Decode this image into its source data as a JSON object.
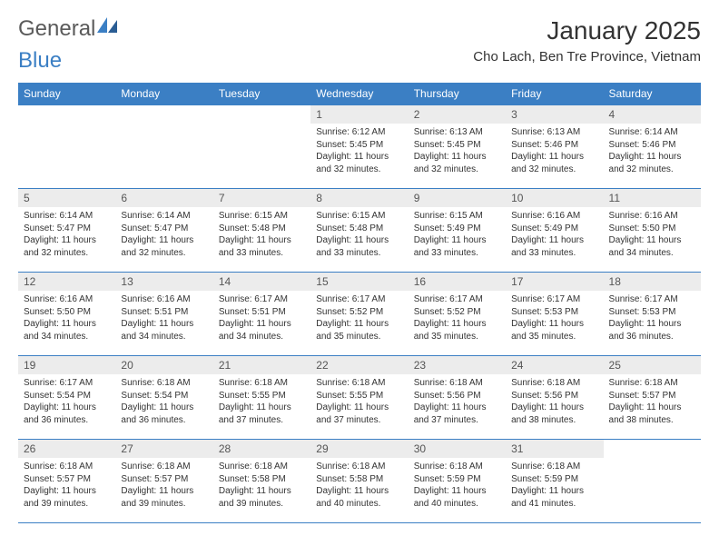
{
  "logo": {
    "part1": "General",
    "part2": "Blue"
  },
  "title": "January 2025",
  "subtitle": "Cho Lach, Ben Tre Province, Vietnam",
  "colors": {
    "header_bg": "#3b7fc4",
    "header_text": "#ffffff",
    "daynum_bg": "#ececec",
    "text": "#333333",
    "border": "#3b7fc4"
  },
  "weekdays": [
    "Sunday",
    "Monday",
    "Tuesday",
    "Wednesday",
    "Thursday",
    "Friday",
    "Saturday"
  ],
  "cells": [
    {
      "day": "",
      "lines": []
    },
    {
      "day": "",
      "lines": []
    },
    {
      "day": "",
      "lines": []
    },
    {
      "day": "1",
      "lines": [
        "Sunrise: 6:12 AM",
        "Sunset: 5:45 PM",
        "Daylight: 11 hours and 32 minutes."
      ]
    },
    {
      "day": "2",
      "lines": [
        "Sunrise: 6:13 AM",
        "Sunset: 5:45 PM",
        "Daylight: 11 hours and 32 minutes."
      ]
    },
    {
      "day": "3",
      "lines": [
        "Sunrise: 6:13 AM",
        "Sunset: 5:46 PM",
        "Daylight: 11 hours and 32 minutes."
      ]
    },
    {
      "day": "4",
      "lines": [
        "Sunrise: 6:14 AM",
        "Sunset: 5:46 PM",
        "Daylight: 11 hours and 32 minutes."
      ]
    },
    {
      "day": "5",
      "lines": [
        "Sunrise: 6:14 AM",
        "Sunset: 5:47 PM",
        "Daylight: 11 hours and 32 minutes."
      ]
    },
    {
      "day": "6",
      "lines": [
        "Sunrise: 6:14 AM",
        "Sunset: 5:47 PM",
        "Daylight: 11 hours and 32 minutes."
      ]
    },
    {
      "day": "7",
      "lines": [
        "Sunrise: 6:15 AM",
        "Sunset: 5:48 PM",
        "Daylight: 11 hours and 33 minutes."
      ]
    },
    {
      "day": "8",
      "lines": [
        "Sunrise: 6:15 AM",
        "Sunset: 5:48 PM",
        "Daylight: 11 hours and 33 minutes."
      ]
    },
    {
      "day": "9",
      "lines": [
        "Sunrise: 6:15 AM",
        "Sunset: 5:49 PM",
        "Daylight: 11 hours and 33 minutes."
      ]
    },
    {
      "day": "10",
      "lines": [
        "Sunrise: 6:16 AM",
        "Sunset: 5:49 PM",
        "Daylight: 11 hours and 33 minutes."
      ]
    },
    {
      "day": "11",
      "lines": [
        "Sunrise: 6:16 AM",
        "Sunset: 5:50 PM",
        "Daylight: 11 hours and 34 minutes."
      ]
    },
    {
      "day": "12",
      "lines": [
        "Sunrise: 6:16 AM",
        "Sunset: 5:50 PM",
        "Daylight: 11 hours and 34 minutes."
      ]
    },
    {
      "day": "13",
      "lines": [
        "Sunrise: 6:16 AM",
        "Sunset: 5:51 PM",
        "Daylight: 11 hours and 34 minutes."
      ]
    },
    {
      "day": "14",
      "lines": [
        "Sunrise: 6:17 AM",
        "Sunset: 5:51 PM",
        "Daylight: 11 hours and 34 minutes."
      ]
    },
    {
      "day": "15",
      "lines": [
        "Sunrise: 6:17 AM",
        "Sunset: 5:52 PM",
        "Daylight: 11 hours and 35 minutes."
      ]
    },
    {
      "day": "16",
      "lines": [
        "Sunrise: 6:17 AM",
        "Sunset: 5:52 PM",
        "Daylight: 11 hours and 35 minutes."
      ]
    },
    {
      "day": "17",
      "lines": [
        "Sunrise: 6:17 AM",
        "Sunset: 5:53 PM",
        "Daylight: 11 hours and 35 minutes."
      ]
    },
    {
      "day": "18",
      "lines": [
        "Sunrise: 6:17 AM",
        "Sunset: 5:53 PM",
        "Daylight: 11 hours and 36 minutes."
      ]
    },
    {
      "day": "19",
      "lines": [
        "Sunrise: 6:17 AM",
        "Sunset: 5:54 PM",
        "Daylight: 11 hours and 36 minutes."
      ]
    },
    {
      "day": "20",
      "lines": [
        "Sunrise: 6:18 AM",
        "Sunset: 5:54 PM",
        "Daylight: 11 hours and 36 minutes."
      ]
    },
    {
      "day": "21",
      "lines": [
        "Sunrise: 6:18 AM",
        "Sunset: 5:55 PM",
        "Daylight: 11 hours and 37 minutes."
      ]
    },
    {
      "day": "22",
      "lines": [
        "Sunrise: 6:18 AM",
        "Sunset: 5:55 PM",
        "Daylight: 11 hours and 37 minutes."
      ]
    },
    {
      "day": "23",
      "lines": [
        "Sunrise: 6:18 AM",
        "Sunset: 5:56 PM",
        "Daylight: 11 hours and 37 minutes."
      ]
    },
    {
      "day": "24",
      "lines": [
        "Sunrise: 6:18 AM",
        "Sunset: 5:56 PM",
        "Daylight: 11 hours and 38 minutes."
      ]
    },
    {
      "day": "25",
      "lines": [
        "Sunrise: 6:18 AM",
        "Sunset: 5:57 PM",
        "Daylight: 11 hours and 38 minutes."
      ]
    },
    {
      "day": "26",
      "lines": [
        "Sunrise: 6:18 AM",
        "Sunset: 5:57 PM",
        "Daylight: 11 hours and 39 minutes."
      ]
    },
    {
      "day": "27",
      "lines": [
        "Sunrise: 6:18 AM",
        "Sunset: 5:57 PM",
        "Daylight: 11 hours and 39 minutes."
      ]
    },
    {
      "day": "28",
      "lines": [
        "Sunrise: 6:18 AM",
        "Sunset: 5:58 PM",
        "Daylight: 11 hours and 39 minutes."
      ]
    },
    {
      "day": "29",
      "lines": [
        "Sunrise: 6:18 AM",
        "Sunset: 5:58 PM",
        "Daylight: 11 hours and 40 minutes."
      ]
    },
    {
      "day": "30",
      "lines": [
        "Sunrise: 6:18 AM",
        "Sunset: 5:59 PM",
        "Daylight: 11 hours and 40 minutes."
      ]
    },
    {
      "day": "31",
      "lines": [
        "Sunrise: 6:18 AM",
        "Sunset: 5:59 PM",
        "Daylight: 11 hours and 41 minutes."
      ]
    },
    {
      "day": "",
      "lines": []
    }
  ]
}
